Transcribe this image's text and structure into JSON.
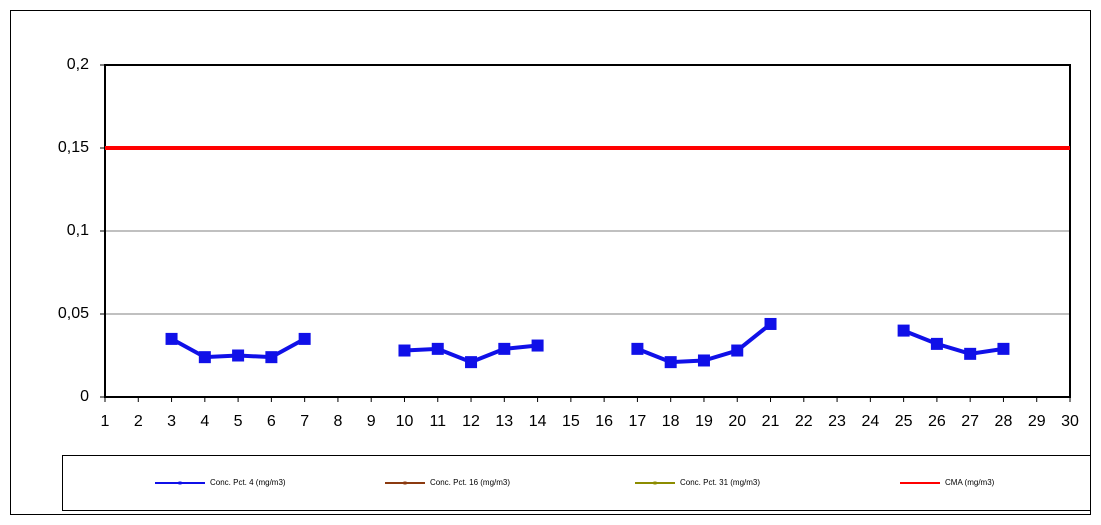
{
  "chart_data": {
    "type": "line",
    "categories": [
      "1",
      "2",
      "3",
      "4",
      "5",
      "6",
      "7",
      "8",
      "9",
      "10",
      "11",
      "12",
      "13",
      "14",
      "15",
      "16",
      "17",
      "18",
      "19",
      "20",
      "21",
      "22",
      "23",
      "24",
      "25",
      "26",
      "27",
      "28",
      "29",
      "30"
    ],
    "series": [
      {
        "name": "Conc. Pct. 4 (mg/m3)",
        "color": "#1010e8",
        "marker": "square",
        "values": [
          null,
          null,
          0.035,
          0.024,
          0.025,
          0.024,
          0.035,
          null,
          null,
          0.028,
          0.029,
          0.021,
          0.029,
          0.031,
          null,
          null,
          0.029,
          0.021,
          0.022,
          0.028,
          0.044,
          null,
          null,
          null,
          0.04,
          0.032,
          0.026,
          0.029,
          null,
          null
        ]
      },
      {
        "name": "Conc. Pct. 16 (mg/m3)",
        "color": "#8b3a10",
        "marker": "circle",
        "values": [
          null,
          null,
          null,
          null,
          null,
          null,
          null,
          null,
          null,
          null,
          null,
          null,
          null,
          null,
          null,
          null,
          null,
          null,
          null,
          null,
          null,
          null,
          null,
          null,
          null,
          null,
          null,
          null,
          null,
          null
        ]
      },
      {
        "name": "Conc. Pct. 31 (mg/m3)",
        "color": "#8c8c00",
        "marker": "circle",
        "values": [
          null,
          null,
          null,
          null,
          null,
          null,
          null,
          null,
          null,
          null,
          null,
          null,
          null,
          null,
          null,
          null,
          null,
          null,
          null,
          null,
          null,
          null,
          null,
          null,
          null,
          null,
          null,
          null,
          null,
          null
        ]
      },
      {
        "name": "CMA (mg/m3)",
        "color": "#ff0000",
        "marker": "none",
        "values": [
          0.15,
          0.15,
          0.15,
          0.15,
          0.15,
          0.15,
          0.15,
          0.15,
          0.15,
          0.15,
          0.15,
          0.15,
          0.15,
          0.15,
          0.15,
          0.15,
          0.15,
          0.15,
          0.15,
          0.15,
          0.15,
          0.15,
          0.15,
          0.15,
          0.15,
          0.15,
          0.15,
          0.15,
          0.15,
          0.15
        ]
      }
    ],
    "ylim": [
      0,
      0.2
    ],
    "yticks": [
      0,
      {
        "value": 0.05,
        "label": "0,05"
      },
      {
        "value": 0.1,
        "label": "0,1"
      },
      {
        "value": 0.15,
        "label": "0,15"
      },
      {
        "value": 0.2,
        "label": "0,2"
      }
    ],
    "grid": true,
    "legend": "bottom"
  }
}
